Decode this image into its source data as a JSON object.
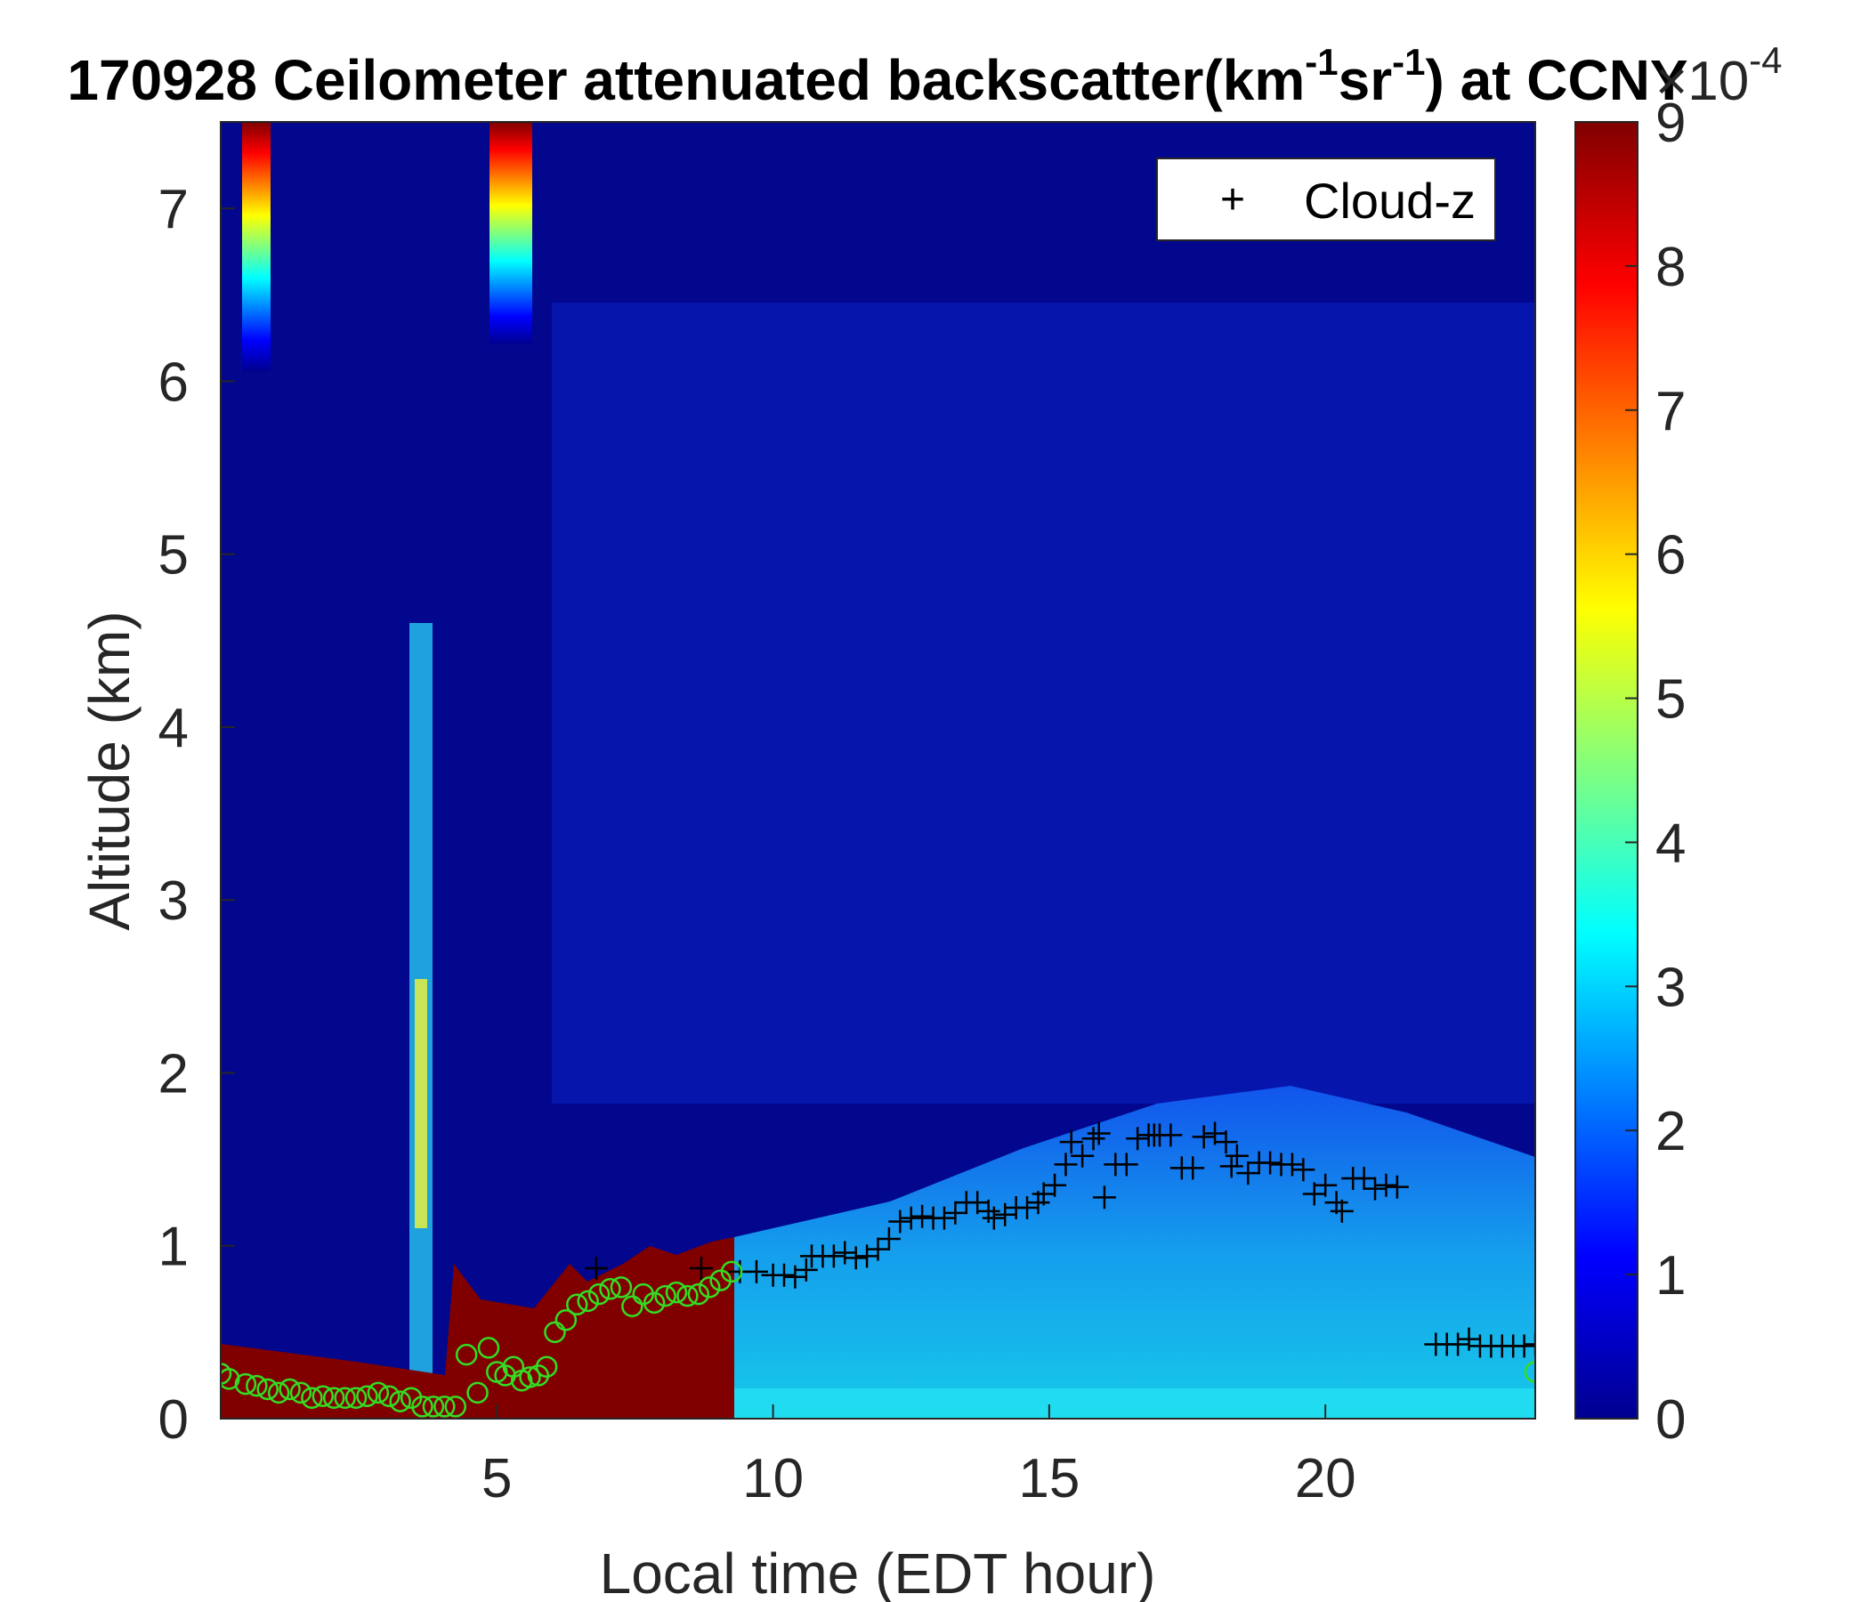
{
  "chart_data": {
    "type": "heatmap",
    "title": {
      "before": "170928 Ceilometer attenuated backscatter(km",
      "sup1": "-1",
      "middle": "sr",
      "sup2": "-1",
      "after": ") at CCNY"
    },
    "xlabel": "Local time (EDT hour)",
    "ylabel": "Altitude (km)",
    "xlim": [
      0,
      23.8
    ],
    "ylim": [
      0,
      7.5
    ],
    "xticks": [
      "5",
      "10",
      "15",
      "20"
    ],
    "yticks": [
      "0",
      "1",
      "2",
      "3",
      "4",
      "5",
      "6",
      "7"
    ],
    "colorbar": {
      "colormap": "jet",
      "limits": [
        0,
        9
      ],
      "ticks": [
        "0",
        "1",
        "2",
        "3",
        "4",
        "5",
        "6",
        "7",
        "8",
        "9"
      ],
      "multiplier_label": "×10",
      "multiplier_exponent": "-4"
    },
    "legend": {
      "placement": "top-right",
      "entries": [
        {
          "marker": "+",
          "label": "Cloud-z"
        }
      ]
    },
    "grid": false,
    "series": [
      {
        "marker": "+",
        "color": "#000000",
        "points": [
          [
            6.8,
            0.87
          ],
          [
            8.7,
            0.87
          ],
          [
            9.4,
            0.85
          ],
          [
            9.7,
            0.85
          ],
          [
            10.0,
            0.83
          ],
          [
            10.2,
            0.83
          ],
          [
            10.4,
            0.82
          ],
          [
            10.6,
            0.86
          ],
          [
            10.7,
            0.94
          ],
          [
            10.9,
            0.94
          ],
          [
            11.1,
            0.94
          ],
          [
            11.3,
            0.96
          ],
          [
            11.5,
            0.93
          ],
          [
            11.7,
            0.94
          ],
          [
            11.9,
            0.98
          ],
          [
            12.1,
            1.04
          ],
          [
            12.3,
            1.14
          ],
          [
            12.5,
            1.16
          ],
          [
            12.7,
            1.17
          ],
          [
            12.9,
            1.16
          ],
          [
            13.1,
            1.16
          ],
          [
            13.3,
            1.19
          ],
          [
            13.5,
            1.25
          ],
          [
            13.7,
            1.25
          ],
          [
            13.9,
            1.2
          ],
          [
            14.0,
            1.16
          ],
          [
            14.2,
            1.18
          ],
          [
            14.4,
            1.22
          ],
          [
            14.6,
            1.22
          ],
          [
            14.8,
            1.25
          ],
          [
            14.9,
            1.3
          ],
          [
            15.1,
            1.35
          ],
          [
            15.3,
            1.47
          ],
          [
            15.4,
            1.6
          ],
          [
            15.6,
            1.52
          ],
          [
            15.8,
            1.62
          ],
          [
            15.9,
            1.65
          ],
          [
            16.0,
            1.28
          ],
          [
            16.2,
            1.47
          ],
          [
            16.4,
            1.47
          ],
          [
            16.6,
            1.62
          ],
          [
            16.8,
            1.64
          ],
          [
            16.9,
            1.64
          ],
          [
            17.0,
            1.64
          ],
          [
            17.2,
            1.64
          ],
          [
            17.4,
            1.45
          ],
          [
            17.6,
            1.45
          ],
          [
            17.8,
            1.63
          ],
          [
            18.0,
            1.65
          ],
          [
            18.2,
            1.6
          ],
          [
            18.3,
            1.46
          ],
          [
            18.4,
            1.52
          ],
          [
            18.6,
            1.42
          ],
          [
            18.8,
            1.48
          ],
          [
            19.0,
            1.48
          ],
          [
            19.2,
            1.47
          ],
          [
            19.4,
            1.47
          ],
          [
            19.6,
            1.44
          ],
          [
            19.8,
            1.3
          ],
          [
            20.0,
            1.35
          ],
          [
            20.2,
            1.25
          ],
          [
            20.3,
            1.2
          ],
          [
            20.5,
            1.39
          ],
          [
            20.7,
            1.39
          ],
          [
            20.9,
            1.33
          ],
          [
            21.1,
            1.35
          ],
          [
            21.3,
            1.34
          ],
          [
            22.0,
            0.43
          ],
          [
            22.2,
            0.43
          ],
          [
            22.4,
            0.43
          ],
          [
            22.6,
            0.46
          ],
          [
            22.8,
            0.42
          ],
          [
            23.0,
            0.42
          ],
          [
            23.2,
            0.42
          ],
          [
            23.4,
            0.42
          ],
          [
            23.6,
            0.42
          ],
          [
            23.8,
            0.43
          ]
        ]
      },
      {
        "marker": "o",
        "color": "#33dd22",
        "points": [
          [
            0.0,
            0.26
          ],
          [
            0.15,
            0.23
          ],
          [
            0.45,
            0.2
          ],
          [
            0.65,
            0.19
          ],
          [
            0.85,
            0.17
          ],
          [
            1.05,
            0.15
          ],
          [
            1.25,
            0.17
          ],
          [
            1.45,
            0.15
          ],
          [
            1.65,
            0.12
          ],
          [
            1.85,
            0.13
          ],
          [
            2.05,
            0.12
          ],
          [
            2.25,
            0.12
          ],
          [
            2.45,
            0.12
          ],
          [
            2.65,
            0.13
          ],
          [
            2.85,
            0.15
          ],
          [
            3.05,
            0.13
          ],
          [
            3.25,
            0.1
          ],
          [
            3.45,
            0.12
          ],
          [
            3.65,
            0.07
          ],
          [
            3.85,
            0.07
          ],
          [
            4.05,
            0.07
          ],
          [
            4.25,
            0.07
          ],
          [
            4.45,
            0.37
          ],
          [
            4.65,
            0.15
          ],
          [
            4.85,
            0.41
          ],
          [
            5.0,
            0.27
          ],
          [
            5.15,
            0.25
          ],
          [
            5.3,
            0.3
          ],
          [
            5.45,
            0.22
          ],
          [
            5.6,
            0.24
          ],
          [
            5.75,
            0.25
          ],
          [
            5.9,
            0.3
          ],
          [
            6.05,
            0.5
          ],
          [
            6.25,
            0.57
          ],
          [
            6.45,
            0.66
          ],
          [
            6.65,
            0.68
          ],
          [
            6.85,
            0.72
          ],
          [
            7.05,
            0.75
          ],
          [
            7.25,
            0.76
          ],
          [
            7.45,
            0.65
          ],
          [
            7.65,
            0.72
          ],
          [
            7.85,
            0.67
          ],
          [
            8.05,
            0.71
          ],
          [
            8.25,
            0.73
          ],
          [
            8.45,
            0.71
          ],
          [
            8.65,
            0.72
          ],
          [
            8.85,
            0.76
          ],
          [
            9.05,
            0.8
          ],
          [
            9.25,
            0.85
          ],
          [
            23.8,
            0.27
          ]
        ]
      }
    ]
  }
}
